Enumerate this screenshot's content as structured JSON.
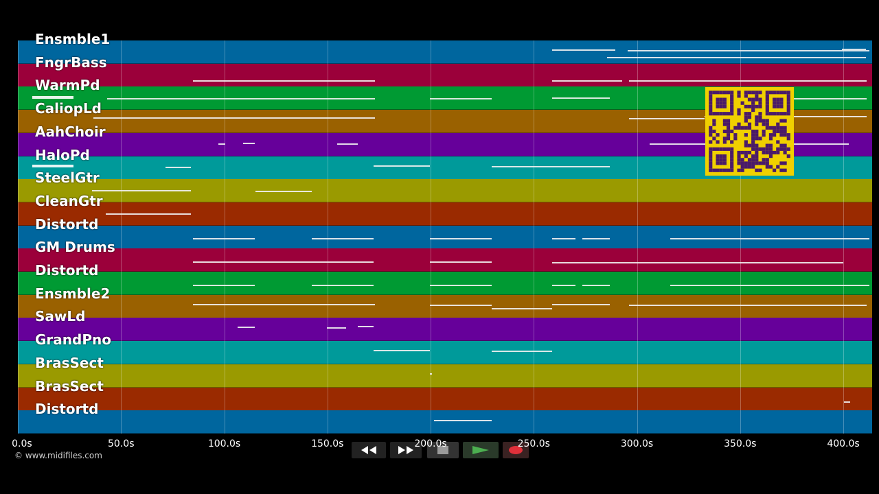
{
  "tracks": [
    {
      "name": "Ensmble1",
      "color": "#00669e"
    },
    {
      "name": "FngrBass",
      "color": "#9b003a"
    },
    {
      "name": "WarmPd",
      "color": "#009a33"
    },
    {
      "name": "CaliopLd",
      "color": "#9a6100"
    },
    {
      "name": "AahChoir",
      "color": "#66009a"
    },
    {
      "name": "HaloPd",
      "color": "#009a9a"
    },
    {
      "name": "SteelGtr",
      "color": "#9a9a00"
    },
    {
      "name": "CleanGtr",
      "color": "#9a2a00"
    },
    {
      "name": "Distortd",
      "color": "#00669e"
    },
    {
      "name": "GM Drums",
      "color": "#9b003a"
    },
    {
      "name": "Distortd",
      "color": "#009a33"
    },
    {
      "name": "Ensmble2",
      "color": "#9a6100"
    },
    {
      "name": "SawLd",
      "color": "#66009a"
    },
    {
      "name": "GrandPno",
      "color": "#009a9a"
    },
    {
      "name": "BrasSect",
      "color": "#9a9a00"
    },
    {
      "name": "BrasSect",
      "color": "#9a2a00"
    },
    {
      "name": "Distortd",
      "color": "#00669e"
    }
  ],
  "timeline": {
    "ticks": [
      "0.0s",
      "50.0s",
      "100.0s",
      "150.0s",
      "200.0s",
      "250.0s",
      "300.0s",
      "350.0s",
      "400.0s"
    ],
    "tick_seconds": [
      0,
      50,
      100,
      150,
      200,
      250,
      300,
      350,
      400
    ]
  },
  "copyright": "© www.midifiles.com",
  "controls": {
    "rewind_icon": "rewind-icon",
    "fast_forward_icon": "fast-forward-icon",
    "stop_icon": "stop-icon",
    "play_icon": "play-icon",
    "record_icon": "record-icon",
    "play_color": "#4caf50",
    "record_color": "#e0303a"
  },
  "qr_icon": "qr-code-icon",
  "qr_color": "#f0d000"
}
